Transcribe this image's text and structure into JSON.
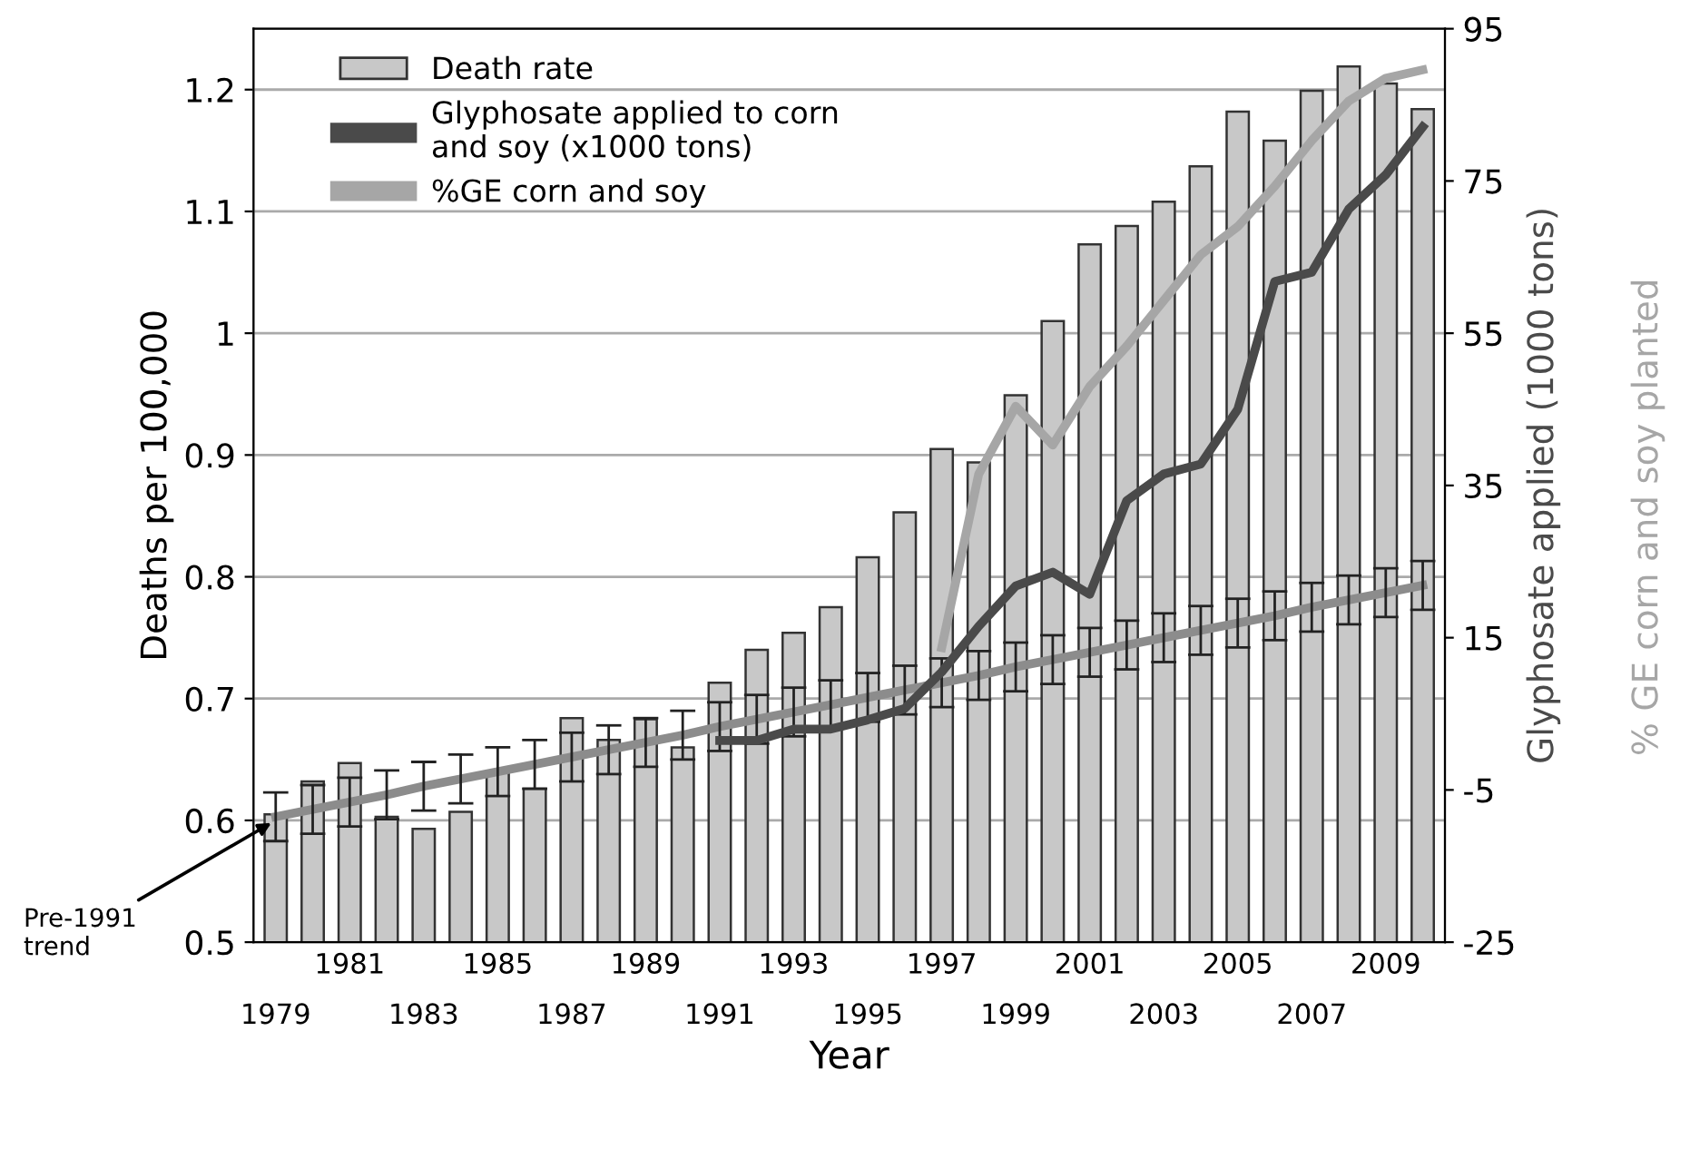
{
  "chart_data": {
    "type": "bar",
    "categories": [
      "1979",
      null,
      "1981",
      null,
      "1983",
      null,
      "1985",
      null,
      "1987",
      null,
      "1989",
      null,
      "1991",
      null,
      "1993",
      null,
      "1995",
      null,
      "1997",
      null,
      "1999",
      null,
      "2001",
      null,
      "2003",
      null,
      "2005",
      null,
      "2007",
      null,
      "2009",
      null
    ],
    "series": [
      {
        "name": "Death rate",
        "color": "#c8c8c8",
        "values": [
          0.605,
          0.632,
          0.647,
          0.603,
          0.593,
          0.607,
          0.64,
          0.626,
          0.684,
          0.666,
          0.683,
          0.66,
          0.713,
          0.74,
          0.754,
          0.775,
          0.816,
          0.853,
          0.905,
          0.894,
          0.949,
          1.01,
          1.073,
          1.088,
          1.108,
          1.137,
          1.182,
          1.158,
          1.199,
          1.219,
          1.205,
          1.184
        ]
      },
      {
        "type": "line",
        "color": "#8c8c8c",
        "values": [
          0.603,
          0.609,
          0.615,
          0.621,
          0.628,
          0.634,
          0.64,
          0.646,
          0.652,
          0.658,
          0.664,
          0.67,
          0.677,
          0.683,
          0.689,
          0.695,
          0.701,
          0.707,
          0.713,
          0.719,
          0.726,
          0.732,
          0.738,
          0.744,
          0.75,
          0.756,
          0.762,
          0.768,
          0.775,
          0.781,
          0.787,
          0.793
        ],
        "errors": [
          0.02,
          0.02,
          0.02,
          0.02,
          0.02,
          0.02,
          0.02,
          0.02,
          0.02,
          0.02,
          0.02,
          0.02,
          0.02,
          0.02,
          0.02,
          0.02,
          0.02,
          0.02,
          0.02,
          0.02,
          0.02,
          0.02,
          0.02,
          0.02,
          0.02,
          0.02,
          0.02,
          0.02,
          0.02,
          0.02,
          0.02,
          0.02
        ]
      },
      {
        "name": "Glyphosate applied to corn\nand soy (x1000 tons)",
        "type": "line",
        "axis": "y2",
        "color": "#4a4a4a",
        "values": [
          null,
          null,
          null,
          null,
          null,
          null,
          null,
          null,
          null,
          null,
          null,
          null,
          1.5,
          1.5,
          3,
          3,
          4.2,
          5.7,
          10.5,
          16.5,
          21.8,
          23.6,
          20.7,
          33,
          36.5,
          37.8,
          45,
          61.8,
          63,
          71.3,
          75.8,
          82.1
        ]
      },
      {
        "name": "%GE corn and soy",
        "type": "line",
        "axis": "y2",
        "color": "#a6a6a6",
        "values": [
          null,
          null,
          null,
          null,
          null,
          null,
          null,
          null,
          null,
          null,
          null,
          null,
          null,
          null,
          null,
          null,
          null,
          null,
          13.7,
          36.5,
          45.4,
          40.3,
          48,
          53.3,
          59.3,
          65.3,
          69,
          74.3,
          80.3,
          85.5,
          88.5,
          89.6
        ]
      }
    ],
    "xlabel": "Year",
    "ylabel": "Deaths per 100,000",
    "y2label": "Glyphosate applied (1000 tons)",
    "annotations": [
      {
        "text": "Pre-1991\ntrend",
        "x": "1979",
        "y": 0.6
      },
      "% GE corn and soy planted"
    ],
    "ylim": [
      0.5,
      1.25
    ],
    "yticks": [
      0.5,
      0.6,
      0.7,
      0.8,
      0.9,
      {
        "value": 1.0,
        "label": "1"
      },
      1.1,
      1.2
    ],
    "y2lim": [
      -25,
      95
    ],
    "y2ticks": [
      -25,
      -5,
      15,
      35,
      55,
      75,
      95
    ],
    "grid": "y",
    "legend": "top left"
  }
}
